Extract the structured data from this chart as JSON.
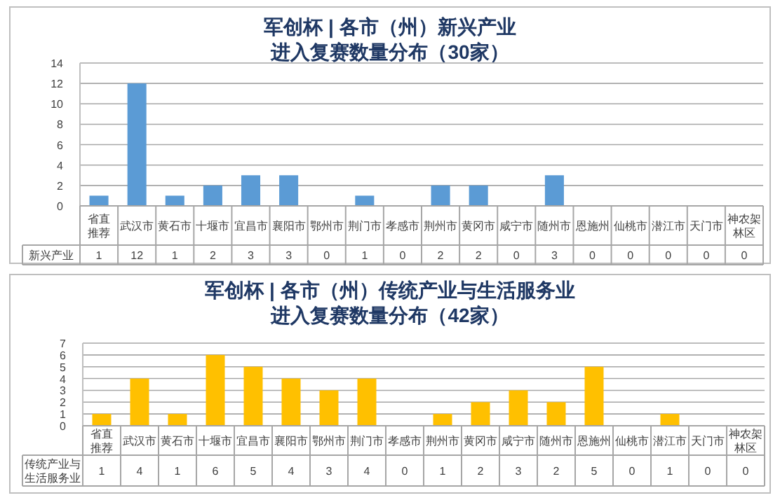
{
  "chart_data": [
    {
      "type": "bar",
      "title": "军创杯 | 各市（州）新兴产业进入复赛数量分布（30家）",
      "categories": [
        "省直推荐",
        "武汉市",
        "黄石市",
        "十堰市",
        "宜昌市",
        "襄阳市",
        "鄂州市",
        "荆门市",
        "孝感市",
        "荆州市",
        "黄冈市",
        "咸宁市",
        "随州市",
        "恩施州",
        "仙桃市",
        "潜江市",
        "天门市",
        "神农架林区"
      ],
      "series": [
        {
          "name": "新兴产业",
          "color": "#5b9bd5",
          "values": [
            1,
            12,
            1,
            2,
            3,
            3,
            0,
            1,
            0,
            2,
            2,
            0,
            3,
            0,
            0,
            0,
            0,
            0
          ]
        }
      ],
      "ylim": [
        0,
        14
      ],
      "yticks": [
        0,
        2,
        4,
        6,
        8,
        10,
        12,
        14
      ],
      "grid": "y",
      "legend": false,
      "data_labels": true
    },
    {
      "type": "bar",
      "title": "军创杯 | 各市（州）传统产业与生活服务业进入复赛数量分布（42家）",
      "categories": [
        "省直推荐",
        "武汉市",
        "黄石市",
        "十堰市",
        "宜昌市",
        "襄阳市",
        "鄂州市",
        "荆门市",
        "孝感市",
        "荆州市",
        "黄冈市",
        "咸宁市",
        "随州市",
        "恩施州",
        "仙桃市",
        "潜江市",
        "天门市",
        "神农架林区"
      ],
      "series": [
        {
          "name": "传统产业与生活服务业",
          "color": "#ffc000",
          "values": [
            1,
            4,
            1,
            6,
            5,
            4,
            3,
            4,
            0,
            1,
            2,
            3,
            2,
            5,
            0,
            1,
            0,
            0
          ]
        }
      ],
      "ylim": [
        0,
        7
      ],
      "yticks": [
        0,
        1,
        2,
        3,
        4,
        5,
        6,
        7
      ],
      "grid": "y",
      "legend": false,
      "data_labels": true
    }
  ]
}
